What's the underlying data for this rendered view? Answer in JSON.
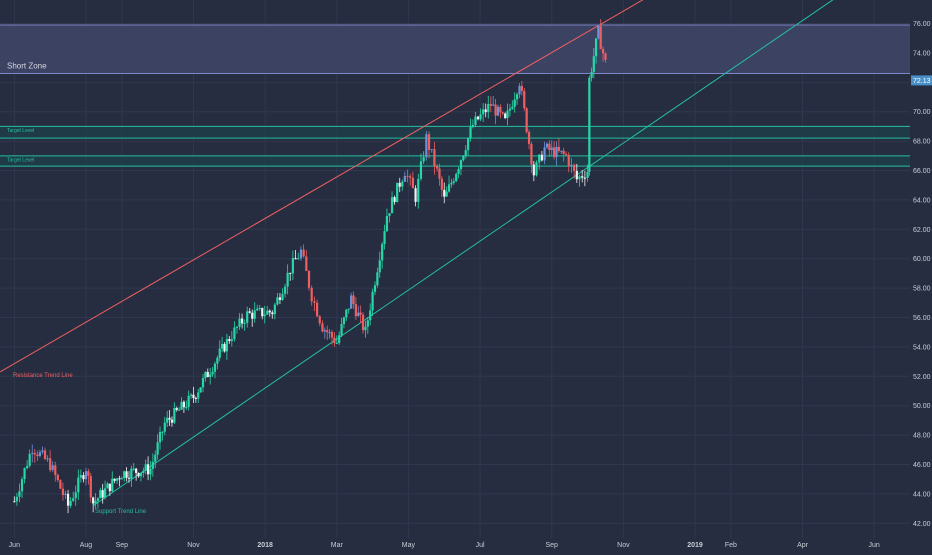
{
  "colors": {
    "background": "#262d40",
    "grid": "#2f3850",
    "up": "#26d7a8",
    "down": "#ef5f62",
    "neutral_up": "#f2f2f2",
    "neutral_down": "#6a93d9",
    "resistance": "#ef5f62",
    "support": "#22c0a0",
    "short_zone_fill": "#3f4566",
    "short_zone_line": "#7d86c8",
    "target_line": "#22c0a0",
    "axis_text": "#c9ccd6",
    "price_tag": "#4a90c8"
  },
  "chart_data": {
    "type": "candlestick",
    "y_ticks": [
      42,
      44,
      46,
      48,
      50,
      52,
      54,
      56,
      58,
      60,
      62,
      64,
      66,
      68,
      70,
      72,
      74,
      76
    ],
    "y_tick_labels": [
      "42.00",
      "44.00",
      "46.00",
      "48.00",
      "50.00",
      "52.00",
      "54.00",
      "56.00",
      "58.00",
      "60.00",
      "62.00",
      "64.00",
      "66.00",
      "68.00",
      "70.00",
      "72.00",
      "74.00",
      "76.00"
    ],
    "ylim": [
      41.0,
      77.6
    ],
    "x_labels": [
      "Jun",
      "Aug",
      "Sep",
      "Nov",
      "2018",
      "Mar",
      "May",
      "Jul",
      "Sep",
      "Nov",
      "2019",
      "Feb",
      "Apr",
      "Jun"
    ],
    "x_label_positions": [
      0.0,
      2.0,
      3.0,
      5.0,
      7.0,
      9.0,
      11.0,
      13.0,
      15.0,
      17.0,
      19.0,
      20.0,
      22.0,
      24.0
    ],
    "x_range": [
      -0.4,
      25.0
    ],
    "last_price": "72.13",
    "last_price_value": 72.13,
    "waypoints": [
      [
        0.0,
        43.5
      ],
      [
        0.5,
        47.2
      ],
      [
        1.0,
        46.0
      ],
      [
        1.5,
        43.2
      ],
      [
        2.0,
        45.8
      ],
      [
        2.2,
        43.4
      ],
      [
        3.0,
        45.4
      ],
      [
        3.8,
        45.7
      ],
      [
        4.2,
        48.8
      ],
      [
        5.0,
        50.6
      ],
      [
        6.0,
        54.6
      ],
      [
        6.5,
        56.2
      ],
      [
        7.2,
        56.4
      ],
      [
        7.7,
        59.3
      ],
      [
        8.0,
        60.5
      ],
      [
        8.3,
        57.5
      ],
      [
        8.6,
        55.4
      ],
      [
        9.0,
        54.3
      ],
      [
        9.4,
        57.3
      ],
      [
        9.8,
        55.0
      ],
      [
        10.4,
        63.0
      ],
      [
        10.9,
        66.0
      ],
      [
        11.2,
        64.2
      ],
      [
        11.5,
        68.2
      ],
      [
        11.8,
        65.9
      ],
      [
        12.0,
        64.0
      ],
      [
        12.4,
        66.4
      ],
      [
        12.8,
        69.1
      ],
      [
        13.3,
        70.5
      ],
      [
        13.7,
        69.3
      ],
      [
        14.1,
        72.1
      ],
      [
        14.5,
        65.8
      ],
      [
        14.8,
        67.5
      ],
      [
        15.4,
        67.0
      ],
      [
        15.7,
        65.4
      ],
      [
        16.0,
        66.0
      ],
      [
        16.05,
        72.2
      ],
      [
        16.3,
        75.4
      ],
      [
        16.5,
        73.3
      ]
    ],
    "resistance_line": {
      "points": [
        [
          -0.4,
          52.3
        ],
        [
          16.4,
          76.0
        ]
      ],
      "extend_to": 25.0
    },
    "support_line": {
      "points": [
        [
          2.2,
          43.2
        ],
        [
          16.0,
          66.2
        ]
      ],
      "extend_to": 25.0
    },
    "short_zone": {
      "top": 75.9,
      "bottom": 72.6,
      "label": "Short Zone"
    },
    "target_levels": [
      {
        "top": 69.0,
        "bottom": 68.2,
        "label": "Target Level"
      },
      {
        "top": 67.0,
        "bottom": 66.3,
        "label": "Target Level"
      }
    ],
    "annotations": {
      "resistance_label": "Resistance Trend Line",
      "support_label": "Support Trend Line"
    }
  }
}
